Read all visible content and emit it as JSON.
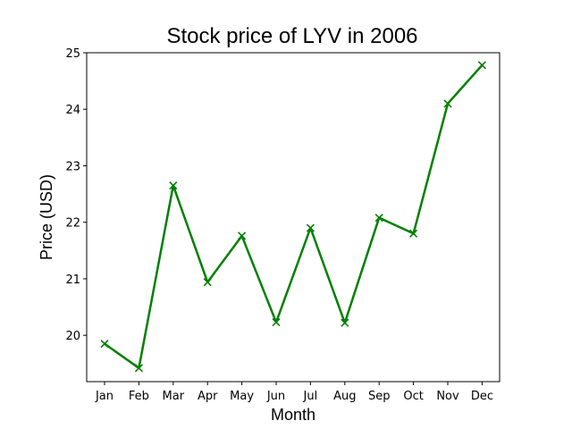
{
  "chart_data": {
    "type": "line",
    "title": "Stock price of LYV in 2006",
    "xlabel": "Month",
    "ylabel": "Price (USD)",
    "categories": [
      "Jan",
      "Feb",
      "Mar",
      "Apr",
      "May",
      "Jun",
      "Jul",
      "Aug",
      "Sep",
      "Oct",
      "Nov",
      "Dec"
    ],
    "series": [
      {
        "values": [
          19.85,
          19.42,
          22.65,
          20.94,
          21.76,
          20.23,
          21.9,
          20.22,
          22.08,
          21.8,
          24.1,
          24.78
        ],
        "color": "#008000",
        "marker": "x"
      }
    ],
    "ylim": [
      19.18,
      25.0
    ],
    "yticks": [
      20,
      21,
      22,
      23,
      24,
      25
    ],
    "grid": false,
    "legend": "none"
  }
}
